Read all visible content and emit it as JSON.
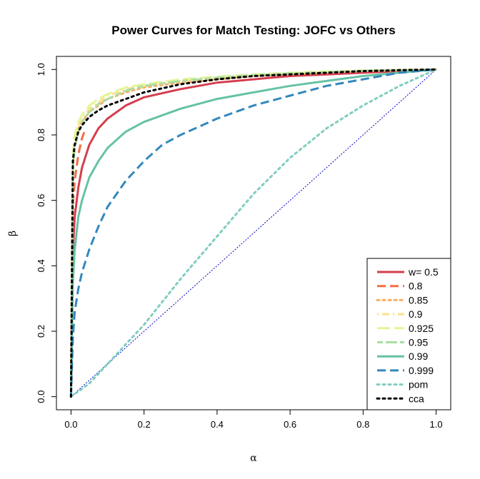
{
  "chart_data": {
    "type": "line",
    "title": "Power Curves for Match Testing: JOFC vs Others",
    "xlabel": "α",
    "ylabel": "β",
    "xlim": [
      -0.04,
      1.04
    ],
    "ylim": [
      -0.04,
      1.04
    ],
    "xticks": [
      0.0,
      0.2,
      0.4,
      0.6,
      0.8,
      1.0
    ],
    "xtick_labels": [
      "0.0",
      "0.2",
      "0.4",
      "0.6",
      "0.8",
      "1.0"
    ],
    "yticks": [
      0.0,
      0.2,
      0.4,
      0.6,
      0.8,
      1.0
    ],
    "ytick_labels": [
      "0.0",
      "0.2",
      "0.4",
      "0.6",
      "0.8",
      "1.0"
    ],
    "grid": false,
    "legend_position": "bottom-right",
    "reference_line": {
      "x": [
        0,
        1
      ],
      "y": [
        0,
        1
      ],
      "color": "#0000cc",
      "style": "dotted"
    },
    "series": [
      {
        "name": "w= 0.5",
        "color": "#d53e4f",
        "dash": "solid",
        "x": [
          0,
          0.005,
          0.01,
          0.02,
          0.03,
          0.05,
          0.075,
          0.1,
          0.15,
          0.2,
          0.3,
          0.4,
          0.5,
          0.6,
          0.7,
          0.8,
          0.9,
          1.0
        ],
        "y": [
          0,
          0.45,
          0.55,
          0.64,
          0.7,
          0.77,
          0.82,
          0.85,
          0.89,
          0.915,
          0.94,
          0.96,
          0.97,
          0.98,
          0.985,
          0.99,
          0.995,
          1.0
        ]
      },
      {
        "name": "0.8",
        "color": "#f46d43",
        "dash": "dashed",
        "x": [
          0,
          0.003,
          0.006,
          0.01,
          0.02,
          0.03,
          0.04
        ],
        "y": [
          0,
          0.5,
          0.6,
          0.66,
          0.74,
          0.79,
          0.82
        ]
      },
      {
        "name": "0.85",
        "color": "#fdae61",
        "dash": "dotted",
        "x": [
          0,
          0.005,
          0.01,
          0.02,
          0.03,
          0.05,
          0.075,
          0.1,
          0.15,
          0.2,
          0.3,
          0.4,
          0.5,
          0.6,
          0.7,
          0.8,
          0.9,
          1.0
        ],
        "y": [
          0,
          0.7,
          0.77,
          0.82,
          0.84,
          0.87,
          0.89,
          0.91,
          0.93,
          0.945,
          0.96,
          0.97,
          0.98,
          0.985,
          0.99,
          0.995,
          0.998,
          1.0
        ]
      },
      {
        "name": "0.9",
        "color": "#fee08b",
        "dash": "dashdot",
        "x": [
          0,
          0.005,
          0.01,
          0.02,
          0.03,
          0.05,
          0.075,
          0.1,
          0.15,
          0.2,
          0.3,
          0.4,
          0.5,
          0.6,
          0.7,
          0.8,
          0.9,
          1.0
        ],
        "y": [
          0,
          0.72,
          0.78,
          0.83,
          0.85,
          0.88,
          0.9,
          0.92,
          0.94,
          0.95,
          0.965,
          0.975,
          0.982,
          0.988,
          0.992,
          0.996,
          0.998,
          1.0
        ]
      },
      {
        "name": "0.925",
        "color": "#e6f598",
        "dash": "longdash",
        "x": [
          0,
          0.005,
          0.01,
          0.02,
          0.03,
          0.05,
          0.075,
          0.1,
          0.15,
          0.2,
          0.3,
          0.4,
          0.5,
          0.6,
          0.7,
          0.8,
          0.9,
          1.0
        ],
        "y": [
          0,
          0.74,
          0.8,
          0.84,
          0.86,
          0.89,
          0.91,
          0.925,
          0.945,
          0.955,
          0.97,
          0.978,
          0.985,
          0.99,
          0.994,
          0.997,
          0.999,
          1.0
        ]
      },
      {
        "name": "0.95",
        "color": "#abdda4",
        "dash": "twodash",
        "x": [
          0,
          0.005,
          0.01,
          0.02,
          0.03,
          0.05,
          0.075,
          0.1,
          0.15,
          0.2,
          0.3,
          0.4,
          0.5,
          0.6,
          0.7,
          0.8,
          0.9,
          1.0
        ],
        "y": [
          0,
          0.7,
          0.76,
          0.81,
          0.84,
          0.87,
          0.895,
          0.91,
          0.935,
          0.95,
          0.965,
          0.975,
          0.983,
          0.988,
          0.992,
          0.996,
          0.998,
          1.0
        ]
      },
      {
        "name": "0.99",
        "color": "#66c2a5",
        "dash": "solid",
        "x": [
          0,
          0.005,
          0.01,
          0.02,
          0.03,
          0.05,
          0.075,
          0.1,
          0.15,
          0.2,
          0.3,
          0.4,
          0.5,
          0.6,
          0.7,
          0.8,
          0.9,
          1.0
        ],
        "y": [
          0,
          0.35,
          0.45,
          0.55,
          0.6,
          0.67,
          0.72,
          0.76,
          0.81,
          0.84,
          0.88,
          0.91,
          0.93,
          0.95,
          0.965,
          0.98,
          0.99,
          1.0
        ]
      },
      {
        "name": "0.999",
        "color": "#3288bd",
        "dash": "dashed",
        "x": [
          0,
          0.005,
          0.01,
          0.02,
          0.03,
          0.05,
          0.075,
          0.1,
          0.15,
          0.2,
          0.25,
          0.3,
          0.4,
          0.5,
          0.6,
          0.7,
          0.8,
          0.9,
          1.0
        ],
        "y": [
          0,
          0.18,
          0.26,
          0.33,
          0.38,
          0.45,
          0.52,
          0.58,
          0.66,
          0.72,
          0.77,
          0.8,
          0.85,
          0.89,
          0.92,
          0.95,
          0.97,
          0.99,
          1.0
        ]
      },
      {
        "name": "pom",
        "color": "#80cdc1",
        "dash": "dotted",
        "x": [
          0,
          0.05,
          0.1,
          0.2,
          0.3,
          0.4,
          0.5,
          0.6,
          0.7,
          0.8,
          0.9,
          1.0
        ],
        "y": [
          0,
          0.04,
          0.1,
          0.22,
          0.36,
          0.49,
          0.62,
          0.73,
          0.82,
          0.89,
          0.95,
          1.0
        ]
      },
      {
        "name": "cca",
        "color": "#000000",
        "dash": "dotted",
        "x": [
          0,
          0.005,
          0.01,
          0.02,
          0.03,
          0.05,
          0.075,
          0.1,
          0.15,
          0.2,
          0.3,
          0.4,
          0.5,
          0.6,
          0.7,
          0.8,
          0.9,
          1.0
        ],
        "y": [
          0,
          0.72,
          0.77,
          0.81,
          0.83,
          0.855,
          0.875,
          0.89,
          0.91,
          0.93,
          0.955,
          0.97,
          0.98,
          0.985,
          0.99,
          0.995,
          0.998,
          1.0
        ]
      }
    ]
  }
}
